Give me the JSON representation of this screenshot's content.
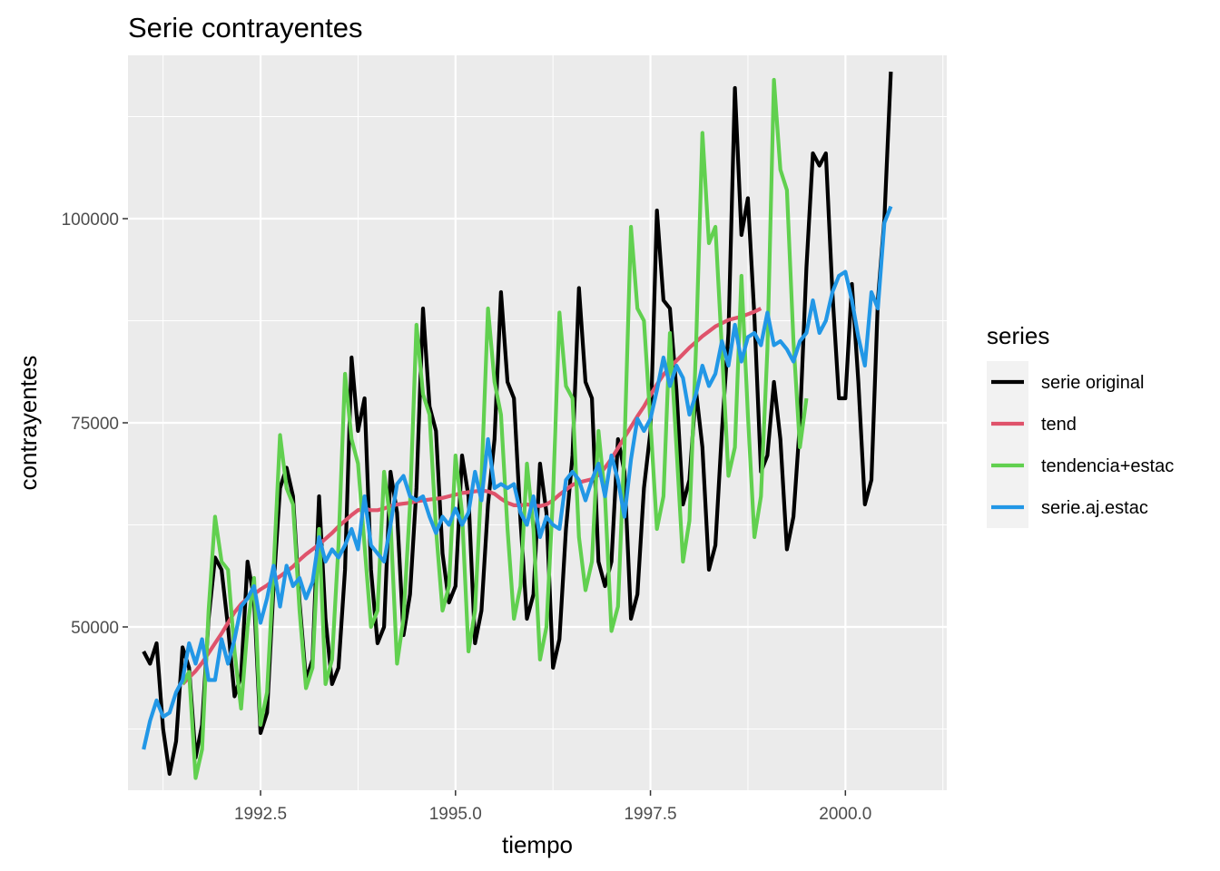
{
  "chart_data": {
    "type": "line",
    "title": "Serie contrayentes",
    "xlabel": "tiempo",
    "ylabel": "contrayentes",
    "xlim": [
      1990.8,
      2001.3
    ],
    "ylim": [
      30000,
      120000
    ],
    "x_ticks": [
      1992.5,
      1995.0,
      1997.5,
      2000.0
    ],
    "x_tick_labels": [
      "1992.5",
      "1995.0",
      "1997.5",
      "2000.0"
    ],
    "y_ticks": [
      50000,
      75000,
      100000
    ],
    "y_tick_labels": [
      "50000",
      "75000",
      "100000"
    ],
    "grid": true,
    "legend": {
      "title": "series",
      "position": "right",
      "entries": [
        "serie original",
        "tend",
        "tendencia+estac",
        "serie.aj.estac"
      ]
    },
    "colors": {
      "panel_bg": "#ebebeb",
      "grid": "#ffffff",
      "serie original": "#000000",
      "tend": "#df536b",
      "tendencia+estac": "#61d04f",
      "serie.aj.estac": "#2297e6"
    },
    "x_start": 1991.0,
    "x_step": 0.0833333,
    "series": [
      {
        "name": "serie original",
        "values": [
          47000,
          45500,
          48000,
          37500,
          32000,
          36000,
          47500,
          45000,
          34000,
          38000,
          51000,
          58500,
          57000,
          50000,
          41500,
          44000,
          58000,
          53500,
          37000,
          39500,
          55000,
          67000,
          69500,
          66000,
          53000,
          43500,
          46000,
          66000,
          51000,
          43000,
          45000,
          57000,
          83000,
          74000,
          78000,
          57000,
          48000,
          50000,
          69000,
          64000,
          49000,
          54000,
          67000,
          89000,
          77000,
          74000,
          59000,
          53000,
          55000,
          71000,
          66000,
          48000,
          52000,
          65000,
          73000,
          91000,
          80000,
          78000,
          63000,
          51000,
          54000,
          70000,
          64000,
          45000,
          48500,
          62000,
          71000,
          91500,
          80000,
          78000,
          58000,
          55000,
          58000,
          73000,
          69000,
          51000,
          54000,
          67000,
          74000,
          101000,
          90000,
          89000,
          79000,
          65000,
          68000,
          79000,
          72000,
          57000,
          60000,
          74000,
          86000,
          116000,
          98000,
          102500,
          88000,
          69000,
          71000,
          80000,
          73000,
          59500,
          63500,
          75000,
          94000,
          108000,
          106500,
          108000,
          91000,
          78000,
          78000,
          92000,
          80000,
          65000,
          68000,
          90000,
          100000,
          118000
        ]
      },
      {
        "name": "tend",
        "values": [
          null,
          null,
          null,
          null,
          null,
          null,
          43000,
          43800,
          44600,
          45600,
          46800,
          48000,
          49200,
          50500,
          51800,
          52800,
          53500,
          54000,
          54600,
          55100,
          55700,
          56200,
          56800,
          57400,
          58200,
          58900,
          59500,
          60100,
          60800,
          61500,
          62300,
          63000,
          63700,
          64300,
          64500,
          64300,
          64300,
          64500,
          64800,
          65000,
          65100,
          65200,
          65400,
          65500,
          65600,
          65700,
          65800,
          66000,
          66200,
          66400,
          66500,
          66600,
          66700,
          66600,
          66300,
          65700,
          65200,
          64900,
          64900,
          65000,
          64900,
          64800,
          65000,
          65500,
          66200,
          66800,
          67400,
          67700,
          67900,
          68100,
          68600,
          69500,
          70600,
          71900,
          73200,
          74500,
          75800,
          77000,
          78400,
          79700,
          80900,
          81800,
          82600,
          83400,
          84200,
          84900,
          85600,
          86200,
          86800,
          87200,
          87600,
          87800,
          88000,
          88300,
          88600,
          89000
        ]
      },
      {
        "name": "tendencia+estac",
        "values": [
          null,
          null,
          null,
          null,
          null,
          null,
          43000,
          44500,
          31500,
          35000,
          52000,
          63500,
          58000,
          57000,
          47000,
          40000,
          50000,
          56000,
          38000,
          42000,
          57000,
          73500,
          67000,
          65000,
          52000,
          42500,
          45000,
          62000,
          43000,
          46000,
          60000,
          81000,
          73000,
          70000,
          60000,
          50000,
          52000,
          69000,
          63000,
          45500,
          51000,
          65000,
          87000,
          78500,
          76000,
          62000,
          52000,
          55000,
          71000,
          64000,
          47000,
          52000,
          68000,
          89000,
          80000,
          76000,
          62000,
          51000,
          55000,
          70000,
          62000,
          46000,
          50000,
          66000,
          88500,
          79500,
          78000,
          61000,
          54500,
          58000,
          74000,
          66000,
          49500,
          52500,
          72000,
          99000,
          89000,
          87500,
          75000,
          62000,
          66000,
          86000,
          72000,
          58000,
          63000,
          84000,
          110500,
          97000,
          99000,
          84000,
          68500,
          72000,
          93000,
          76000,
          61000,
          66000,
          84000,
          117000,
          106000,
          103500,
          85000,
          72000,
          78000
        ]
      },
      {
        "name": "serie.aj.estac",
        "values": [
          35000,
          38500,
          41000,
          39000,
          39500,
          42000,
          43500,
          48000,
          45500,
          48500,
          43500,
          43500,
          48500,
          45500,
          48500,
          52500,
          53500,
          55000,
          50500,
          53500,
          57500,
          52500,
          57500,
          55000,
          56000,
          53500,
          55500,
          61000,
          58000,
          59500,
          58500,
          60000,
          62000,
          59500,
          66000,
          60000,
          59000,
          58000,
          62500,
          67500,
          68500,
          66000,
          65500,
          66000,
          63500,
          61500,
          63500,
          62500,
          64500,
          62500,
          64000,
          69000,
          65500,
          73000,
          67000,
          67500,
          67000,
          67500,
          64000,
          62500,
          66000,
          61000,
          63500,
          62500,
          62000,
          68000,
          69000,
          68000,
          65500,
          68000,
          70000,
          66000,
          71000,
          68000,
          63500,
          70500,
          75500,
          74000,
          75500,
          79000,
          83000,
          79500,
          82000,
          80500,
          76000,
          78500,
          82000,
          79500,
          81000,
          85000,
          82000,
          87000,
          82500,
          85500,
          86000,
          84500,
          88500,
          84500,
          85000,
          84000,
          82500,
          85000,
          86000,
          90000,
          86000,
          87500,
          91000,
          93000,
          93500,
          90000,
          85500,
          82000,
          91000,
          89000,
          99500,
          101500
        ]
      }
    ]
  }
}
